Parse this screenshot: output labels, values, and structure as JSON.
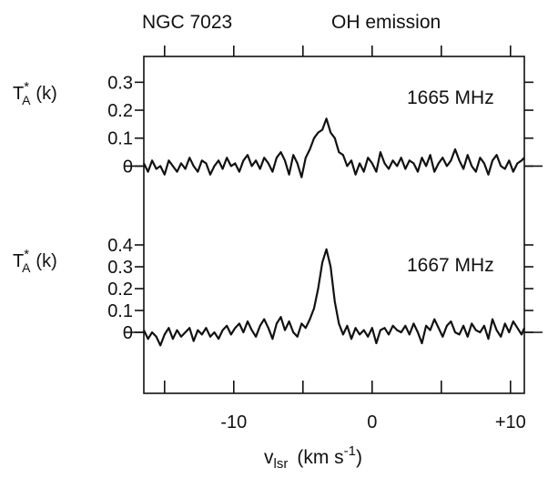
{
  "chart_data": {
    "type": "line",
    "header": {
      "left": "NGC 7023",
      "right": "OH emission"
    },
    "xlabel": {
      "main": "v",
      "subscript": "lsr",
      "open": "(km s",
      "sup": "-1",
      "close": ")"
    },
    "xlim": [
      -16.5,
      11
    ],
    "xticks": {
      "major": [
        -15,
        -10,
        -5,
        0,
        5,
        10
      ],
      "labels": [
        "-10",
        "0",
        "+10"
      ],
      "label_values": [
        -10,
        0,
        10
      ]
    },
    "panels": [
      {
        "name": "1665 MHz",
        "ylabel": {
          "main": "T",
          "sub": "A",
          "sup": "*",
          "unit": "(k)"
        },
        "ylim": [
          -0.08,
          0.35
        ],
        "yticks": [
          0,
          0.1,
          0.2,
          0.3
        ],
        "ytick_labels": [
          "0",
          "0.1",
          "0.2",
          "0.3"
        ],
        "series": [
          {
            "x": [
              -16.5,
              -16.2,
              -15.9,
              -15.6,
              -15.3,
              -15.0,
              -14.7,
              -14.4,
              -14.1,
              -13.8,
              -13.5,
              -13.2,
              -12.9,
              -12.6,
              -12.3,
              -12.0,
              -11.7,
              -11.4,
              -11.1,
              -10.8,
              -10.5,
              -10.2,
              -9.9,
              -9.6,
              -9.3,
              -9.0,
              -8.7,
              -8.4,
              -8.1,
              -7.8,
              -7.5,
              -7.2,
              -6.9,
              -6.6,
              -6.3,
              -6.0,
              -5.7,
              -5.4,
              -5.1,
              -4.8,
              -4.5,
              -4.2,
              -3.9,
              -3.6,
              -3.3,
              -3.0,
              -2.7,
              -2.4,
              -2.1,
              -1.8,
              -1.5,
              -1.2,
              -0.9,
              -0.6,
              -0.3,
              0.0,
              0.3,
              0.6,
              0.9,
              1.2,
              1.5,
              1.8,
              2.1,
              2.4,
              2.7,
              3.0,
              3.3,
              3.6,
              3.9,
              4.2,
              4.5,
              4.8,
              5.1,
              5.4,
              5.7,
              6.0,
              6.3,
              6.6,
              6.9,
              7.2,
              7.5,
              7.8,
              8.1,
              8.4,
              8.7,
              9.0,
              9.3,
              9.6,
              9.9,
              10.2,
              10.5,
              10.8,
              11.0
            ],
            "y": [
              0.01,
              -0.02,
              0.02,
              -0.01,
              0.0,
              -0.03,
              0.02,
              0.0,
              -0.02,
              0.01,
              -0.01,
              0.03,
              0.0,
              -0.02,
              0.02,
              0.01,
              -0.03,
              0.0,
              0.02,
              -0.01,
              0.03,
              0.0,
              0.01,
              -0.02,
              0.02,
              0.04,
              0.0,
              0.02,
              -0.01,
              0.03,
              0.01,
              -0.02,
              0.03,
              0.05,
              0.02,
              -0.03,
              0.04,
              0.01,
              -0.04,
              0.03,
              0.06,
              0.1,
              0.12,
              0.13,
              0.17,
              0.12,
              0.1,
              0.05,
              0.04,
              0.0,
              0.02,
              -0.03,
              0.01,
              -0.02,
              0.03,
              0.01,
              -0.02,
              0.05,
              0.01,
              -0.01,
              0.02,
              0.0,
              0.03,
              -0.01,
              0.02,
              0.01,
              -0.02,
              0.03,
              0.0,
              0.04,
              -0.02,
              0.01,
              0.03,
              0.0,
              0.02,
              0.06,
              0.02,
              -0.01,
              0.04,
              0.0,
              -0.02,
              0.03,
              0.01,
              -0.03,
              0.02,
              0.04,
              0.0,
              -0.01,
              0.02,
              -0.02,
              0.01,
              0.02,
              0.03
            ]
          }
        ]
      },
      {
        "name": "1667 MHz",
        "ylabel": {
          "main": "T",
          "sub": "A",
          "sup": "*",
          "unit": "(k)"
        },
        "ylim": [
          -0.2,
          0.45
        ],
        "yticks": [
          0,
          0.1,
          0.2,
          0.3,
          0.4
        ],
        "ytick_labels": [
          "0",
          "0.1",
          "0.2",
          "0.3",
          "0.4"
        ],
        "series": [
          {
            "x": [
              -16.5,
              -16.2,
              -15.9,
              -15.6,
              -15.3,
              -15.0,
              -14.7,
              -14.4,
              -14.1,
              -13.8,
              -13.5,
              -13.2,
              -12.9,
              -12.6,
              -12.3,
              -12.0,
              -11.7,
              -11.4,
              -11.1,
              -10.8,
              -10.5,
              -10.2,
              -9.9,
              -9.6,
              -9.3,
              -9.0,
              -8.7,
              -8.4,
              -8.1,
              -7.8,
              -7.5,
              -7.2,
              -6.9,
              -6.6,
              -6.3,
              -6.0,
              -5.7,
              -5.4,
              -5.1,
              -4.8,
              -4.5,
              -4.2,
              -3.9,
              -3.6,
              -3.3,
              -3.0,
              -2.7,
              -2.4,
              -2.1,
              -1.8,
              -1.5,
              -1.2,
              -0.9,
              -0.6,
              -0.3,
              0.0,
              0.3,
              0.6,
              0.9,
              1.2,
              1.5,
              1.8,
              2.1,
              2.4,
              2.7,
              3.0,
              3.3,
              3.6,
              3.9,
              4.2,
              4.5,
              4.8,
              5.1,
              5.4,
              5.7,
              6.0,
              6.3,
              6.6,
              6.9,
              7.2,
              7.5,
              7.8,
              8.1,
              8.4,
              8.7,
              9.0,
              9.3,
              9.6,
              9.9,
              10.2,
              10.5,
              10.8,
              11.0
            ],
            "y": [
              0.01,
              -0.03,
              0.0,
              -0.02,
              -0.06,
              -0.01,
              0.02,
              -0.03,
              0.01,
              -0.02,
              0.0,
              0.02,
              -0.04,
              0.01,
              -0.01,
              0.02,
              -0.02,
              0.0,
              -0.03,
              0.01,
              0.03,
              -0.01,
              0.02,
              0.04,
              0.0,
              0.05,
              0.01,
              -0.02,
              0.03,
              0.06,
              0.02,
              -0.03,
              0.04,
              0.07,
              0.01,
              0.05,
              0.0,
              -0.02,
              0.04,
              0.02,
              0.06,
              0.11,
              0.2,
              0.32,
              0.38,
              0.3,
              0.14,
              0.04,
              -0.01,
              0.03,
              -0.03,
              0.02,
              -0.01,
              0.01,
              -0.02,
              0.02,
              -0.05,
              0.01,
              0.02,
              -0.01,
              0.03,
              0.01,
              0.0,
              0.03,
              -0.01,
              0.04,
              0.0,
              -0.05,
              0.03,
              0.01,
              0.06,
              0.02,
              -0.02,
              0.03,
              0.05,
              0.0,
              -0.01,
              0.03,
              -0.02,
              0.04,
              0.01,
              0.0,
              0.03,
              -0.03,
              0.06,
              0.01,
              -0.02,
              0.04,
              0.0,
              0.05,
              0.02,
              -0.01,
              0.02
            ]
          }
        ]
      }
    ]
  }
}
